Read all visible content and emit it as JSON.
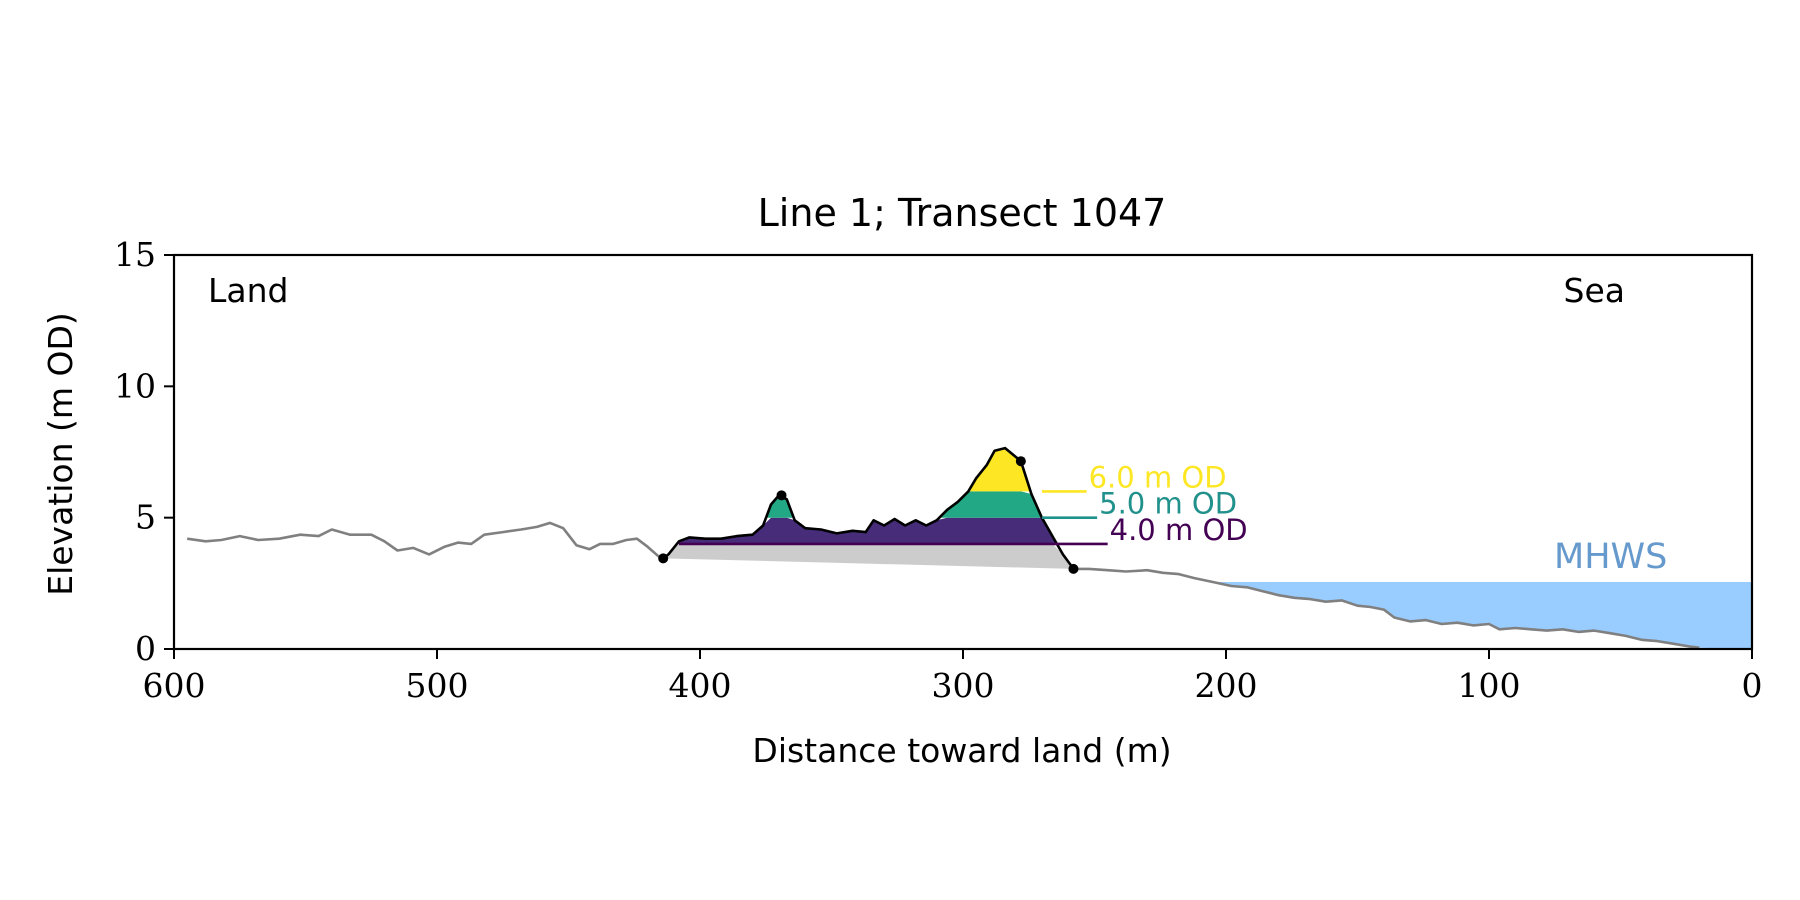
{
  "chart_data": {
    "type": "area",
    "title": "Line 1; Transect 1047",
    "xlabel": "Distance toward land (m)",
    "ylabel": "Elevation (m OD)",
    "xlim": [
      600,
      0
    ],
    "ylim": [
      0,
      15
    ],
    "x_ticks": [
      600,
      500,
      400,
      300,
      200,
      100,
      0
    ],
    "y_ticks": [
      0,
      5,
      10,
      15
    ],
    "grid": false,
    "annotations": {
      "land": "Land",
      "sea": "Sea",
      "mhws": "MHWS"
    },
    "mhws_level": 2.55,
    "mhws_x_start": 205,
    "colors": {
      "profile": "#808080",
      "dune_outline": "#000000",
      "base": "#cccccc",
      "level_4": "#440154",
      "level_4_fill": "#472c7a",
      "level_5": "#21918c",
      "level_5_fill": "#22a884",
      "level_6": "#fde725",
      "mhws": "#99ccff",
      "mhws_text": "#6699cc"
    },
    "levels": [
      {
        "label": "4.0 m OD",
        "value": 4.0
      },
      {
        "label": "5.0 m OD",
        "value": 5.0
      },
      {
        "label": "6.0 m OD",
        "value": 6.0
      }
    ],
    "dune": {
      "toe_landward": [
        414,
        3.45
      ],
      "crest_secondary": [
        369,
        5.85
      ],
      "crest_seaward": [
        278,
        7.15
      ],
      "toe_seaward": [
        258,
        3.05
      ]
    },
    "profile": [
      [
        595,
        4.2
      ],
      [
        588,
        4.1
      ],
      [
        582,
        4.15
      ],
      [
        575,
        4.3
      ],
      [
        568,
        4.15
      ],
      [
        560,
        4.2
      ],
      [
        552,
        4.35
      ],
      [
        545,
        4.3
      ],
      [
        540,
        4.55
      ],
      [
        533,
        4.35
      ],
      [
        525,
        4.35
      ],
      [
        520,
        4.1
      ],
      [
        515,
        3.75
      ],
      [
        509,
        3.85
      ],
      [
        503,
        3.6
      ],
      [
        497,
        3.9
      ],
      [
        492,
        4.05
      ],
      [
        487,
        4.0
      ],
      [
        482,
        4.35
      ],
      [
        475,
        4.45
      ],
      [
        468,
        4.55
      ],
      [
        462,
        4.65
      ],
      [
        457,
        4.8
      ],
      [
        452,
        4.6
      ],
      [
        447,
        3.95
      ],
      [
        442,
        3.8
      ],
      [
        438,
        4.0
      ],
      [
        433,
        4.0
      ],
      [
        428,
        4.15
      ],
      [
        424,
        4.2
      ],
      [
        420,
        3.9
      ],
      [
        416,
        3.55
      ],
      [
        414,
        3.45
      ],
      [
        412,
        3.6
      ],
      [
        408,
        4.1
      ],
      [
        404,
        4.25
      ],
      [
        398,
        4.2
      ],
      [
        392,
        4.2
      ],
      [
        386,
        4.3
      ],
      [
        380,
        4.35
      ],
      [
        376,
        4.7
      ],
      [
        373,
        5.5
      ],
      [
        370,
        5.85
      ],
      [
        367,
        5.7
      ],
      [
        364,
        4.9
      ],
      [
        360,
        4.6
      ],
      [
        354,
        4.55
      ],
      [
        348,
        4.4
      ],
      [
        342,
        4.5
      ],
      [
        337,
        4.45
      ],
      [
        334,
        4.9
      ],
      [
        330,
        4.7
      ],
      [
        326,
        4.95
      ],
      [
        322,
        4.7
      ],
      [
        318,
        4.9
      ],
      [
        314,
        4.7
      ],
      [
        310,
        4.9
      ],
      [
        306,
        5.3
      ],
      [
        302,
        5.6
      ],
      [
        298,
        6.0
      ],
      [
        295,
        6.5
      ],
      [
        291,
        7.0
      ],
      [
        288,
        7.55
      ],
      [
        284,
        7.65
      ],
      [
        281,
        7.4
      ],
      [
        278,
        7.15
      ],
      [
        274,
        5.9
      ],
      [
        270,
        5.0
      ],
      [
        266,
        4.3
      ],
      [
        262,
        3.6
      ],
      [
        258,
        3.05
      ],
      [
        252,
        3.05
      ],
      [
        245,
        3.0
      ],
      [
        238,
        2.95
      ],
      [
        230,
        3.0
      ],
      [
        224,
        2.9
      ],
      [
        218,
        2.85
      ],
      [
        212,
        2.7
      ],
      [
        205,
        2.55
      ],
      [
        198,
        2.4
      ],
      [
        192,
        2.35
      ],
      [
        186,
        2.2
      ],
      [
        180,
        2.05
      ],
      [
        174,
        1.95
      ],
      [
        168,
        1.9
      ],
      [
        162,
        1.8
      ],
      [
        156,
        1.85
      ],
      [
        150,
        1.65
      ],
      [
        145,
        1.6
      ],
      [
        140,
        1.5
      ],
      [
        136,
        1.2
      ],
      [
        130,
        1.05
      ],
      [
        124,
        1.1
      ],
      [
        118,
        0.95
      ],
      [
        112,
        1.0
      ],
      [
        106,
        0.9
      ],
      [
        100,
        0.95
      ],
      [
        96,
        0.75
      ],
      [
        90,
        0.8
      ],
      [
        84,
        0.75
      ],
      [
        78,
        0.7
      ],
      [
        72,
        0.75
      ],
      [
        66,
        0.65
      ],
      [
        60,
        0.7
      ],
      [
        54,
        0.6
      ],
      [
        48,
        0.5
      ],
      [
        42,
        0.35
      ],
      [
        36,
        0.3
      ],
      [
        30,
        0.2
      ],
      [
        24,
        0.1
      ],
      [
        20,
        0.05
      ]
    ]
  }
}
